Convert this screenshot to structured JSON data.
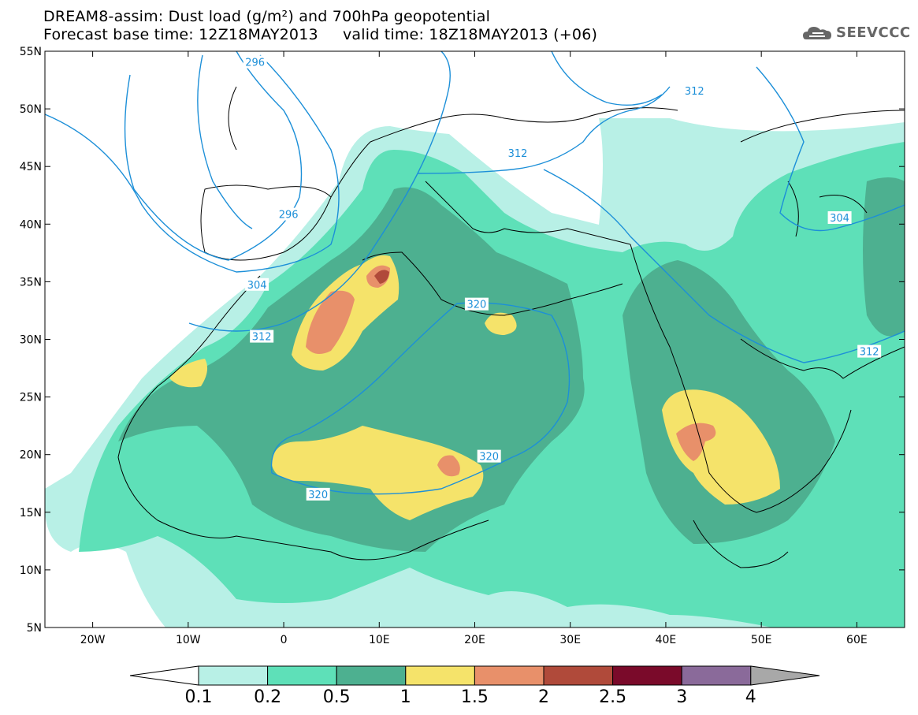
{
  "title_line1": "DREAM8-assim: Dust load (g/m²) and 700hPa geopotential",
  "title_line2": "Forecast base time: 12Z18MAY2013     valid time: 18Z18MAY2013 (+06)",
  "logo_text": "SEEVCCC",
  "axes": {
    "lat_labels": [
      "55N",
      "50N",
      "45N",
      "40N",
      "35N",
      "30N",
      "25N",
      "20N",
      "15N",
      "10N",
      "5N"
    ],
    "lat_values": [
      55,
      50,
      45,
      40,
      35,
      30,
      25,
      20,
      15,
      10,
      5
    ],
    "lon_labels": [
      "20W",
      "10W",
      "0",
      "10E",
      "20E",
      "30E",
      "40E",
      "50E",
      "60E"
    ],
    "lon_values": [
      -20,
      -10,
      0,
      10,
      20,
      30,
      40,
      50,
      60
    ],
    "lon_range": [
      -25,
      65
    ],
    "lat_range": [
      5,
      55
    ]
  },
  "contour_labels": [
    {
      "text": "296",
      "lon": -3,
      "lat": 54
    },
    {
      "text": "296",
      "lon": 0.5,
      "lat": 40.8
    },
    {
      "text": "304",
      "lon": -2.8,
      "lat": 34.7
    },
    {
      "text": "312",
      "lon": -2.3,
      "lat": 30.2
    },
    {
      "text": "312",
      "lon": 24.5,
      "lat": 46.1
    },
    {
      "text": "312",
      "lon": 43,
      "lat": 51.5
    },
    {
      "text": "304",
      "lon": 58.2,
      "lat": 40.5
    },
    {
      "text": "312",
      "lon": 61.3,
      "lat": 28.9
    },
    {
      "text": "320",
      "lon": 20.2,
      "lat": 33
    },
    {
      "text": "320",
      "lon": 3.6,
      "lat": 16.5
    },
    {
      "text": "320",
      "lon": 21.5,
      "lat": 19.8
    }
  ],
  "colorbar": {
    "labels": [
      "0.1",
      "0.2",
      "0.5",
      "1",
      "1.5",
      "2",
      "2.5",
      "3",
      "4"
    ],
    "colors": [
      "#ffffff",
      "#b8f0e6",
      "#5ee0b8",
      "#4db090",
      "#f5e36a",
      "#e8906a",
      "#b04a3a",
      "#7a0a2a",
      "#8a6a9a",
      "#a8a8a8"
    ]
  }
}
